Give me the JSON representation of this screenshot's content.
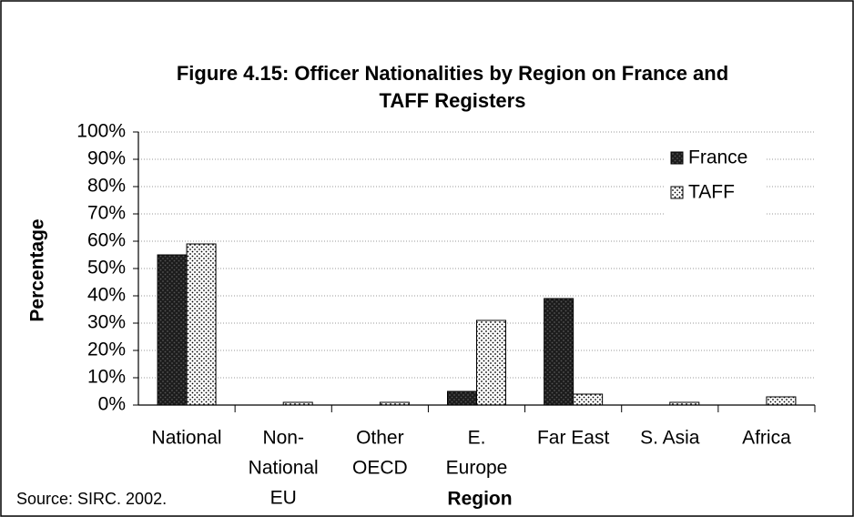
{
  "chart_data": {
    "type": "bar",
    "title": [
      "Figure 4.15: Officer Nationalities by Region on France and",
      "TAFF Registers"
    ],
    "ylabel": "Percentage",
    "xlabel": "Region",
    "source": "Source: SIRC. 2002.",
    "categories": [
      [
        "National"
      ],
      [
        "Non-",
        "National",
        "EU"
      ],
      [
        "Other",
        "OECD"
      ],
      [
        "E.",
        "Europe"
      ],
      [
        "Far East"
      ],
      [
        "S. Asia"
      ],
      [
        "Africa"
      ]
    ],
    "series": [
      {
        "name": "France",
        "color": "#1c1c1c",
        "values": [
          55,
          0,
          0,
          5,
          39,
          0,
          0
        ]
      },
      {
        "name": "TAFF",
        "color": "#ffffff",
        "values": [
          59,
          1,
          1,
          31,
          4,
          1,
          3
        ]
      }
    ],
    "ylim": [
      0,
      100
    ],
    "yticks": [
      {
        "value": 0,
        "label": "0%"
      },
      {
        "value": 10,
        "label": "10%"
      },
      {
        "value": 20,
        "label": "20%"
      },
      {
        "value": 30,
        "label": "30%"
      },
      {
        "value": 40,
        "label": "40%"
      },
      {
        "value": 50,
        "label": "50%"
      },
      {
        "value": 60,
        "label": "60%"
      },
      {
        "value": 70,
        "label": "70%"
      },
      {
        "value": 80,
        "label": "80%"
      },
      {
        "value": 90,
        "label": "90%"
      },
      {
        "value": 100,
        "label": "100%"
      }
    ],
    "grid": true,
    "legend": "upper right"
  }
}
